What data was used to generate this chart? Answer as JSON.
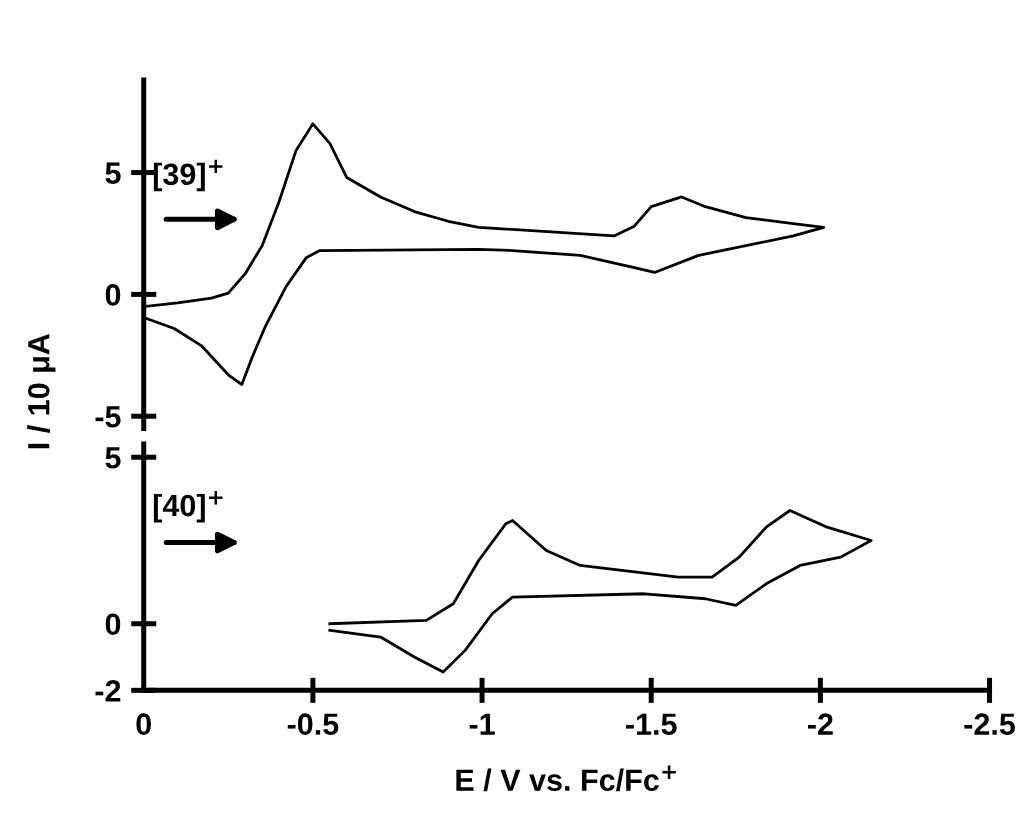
{
  "chart_data": [
    {
      "type": "line",
      "ylabel": "I / 10 μA",
      "xlim": [
        0,
        -2.5
      ],
      "ylim": [
        -5.5,
        8.8
      ],
      "yticks": [
        -5,
        0,
        5
      ],
      "tick_labels": "y",
      "annotations": [
        "[39]$^{+}$"
      ],
      "series": [
        {
          "color": "#000000",
          "x": [
            0,
            -0.1,
            -0.2,
            -0.25,
            -0.3,
            -0.35,
            -0.4,
            -0.45,
            -0.5,
            -0.55,
            -0.6,
            -0.7,
            -0.8,
            -0.9,
            -0.99,
            -1.39,
            -1.45,
            -1.5,
            -1.59,
            -1.66,
            -1.78,
            -1.92,
            -2.01,
            -1.92,
            -1.78,
            -1.64,
            -1.51,
            -1.45,
            -1.29,
            -1.09,
            -0.99,
            -0.52,
            -0.48,
            -0.42,
            -0.36,
            -0.32,
            -0.29,
            -0.25,
            -0.17,
            -0.09,
            -0.01
          ],
          "values": [
            -0.5,
            -0.35,
            -0.15,
            0.05,
            0.85,
            2.0,
            3.8,
            5.9,
            7.0,
            6.2,
            4.8,
            4.0,
            3.4,
            3.0,
            2.75,
            2.4,
            2.8,
            3.6,
            4.0,
            3.6,
            3.15,
            2.9,
            2.75,
            2.4,
            2.0,
            1.6,
            0.9,
            1.1,
            1.6,
            1.8,
            1.85,
            1.8,
            1.5,
            0.3,
            -1.3,
            -2.6,
            -3.7,
            -3.3,
            -2.1,
            -1.4,
            -1.0
          ]
        }
      ]
    },
    {
      "type": "line",
      "xlabel": "E / V vs. Fc/Fc$^{+}$",
      "xlim": [
        0,
        -2.5
      ],
      "xticks": [
        0,
        -0.5,
        -1,
        -1.5,
        -2,
        -2.5
      ],
      "ylim": [
        -2,
        5.4
      ],
      "yticks": [
        -2,
        0,
        5
      ],
      "annotations": [
        "[40]$^{+}$"
      ],
      "series": [
        {
          "color": "#000000",
          "x": [
            -0.55,
            -0.835,
            -0.915,
            -0.99,
            -1.07,
            -1.09,
            -1.19,
            -1.29,
            -1.58,
            -1.68,
            -1.76,
            -1.84,
            -1.91,
            -2.02,
            -2.15,
            -2.06,
            -1.94,
            -1.84,
            -1.75,
            -1.66,
            -1.48,
            -1.09,
            -1.03,
            -0.95,
            -0.885,
            -0.8,
            -0.7,
            -0.55
          ],
          "values": [
            0.0,
            0.1,
            0.6,
            1.9,
            3.0,
            3.1,
            2.2,
            1.75,
            1.4,
            1.4,
            2.0,
            2.9,
            3.4,
            2.9,
            2.5,
            2.0,
            1.75,
            1.2,
            0.55,
            0.75,
            0.9,
            0.8,
            0.3,
            -0.8,
            -1.45,
            -1.0,
            -0.4,
            -0.2
          ]
        }
      ]
    }
  ]
}
